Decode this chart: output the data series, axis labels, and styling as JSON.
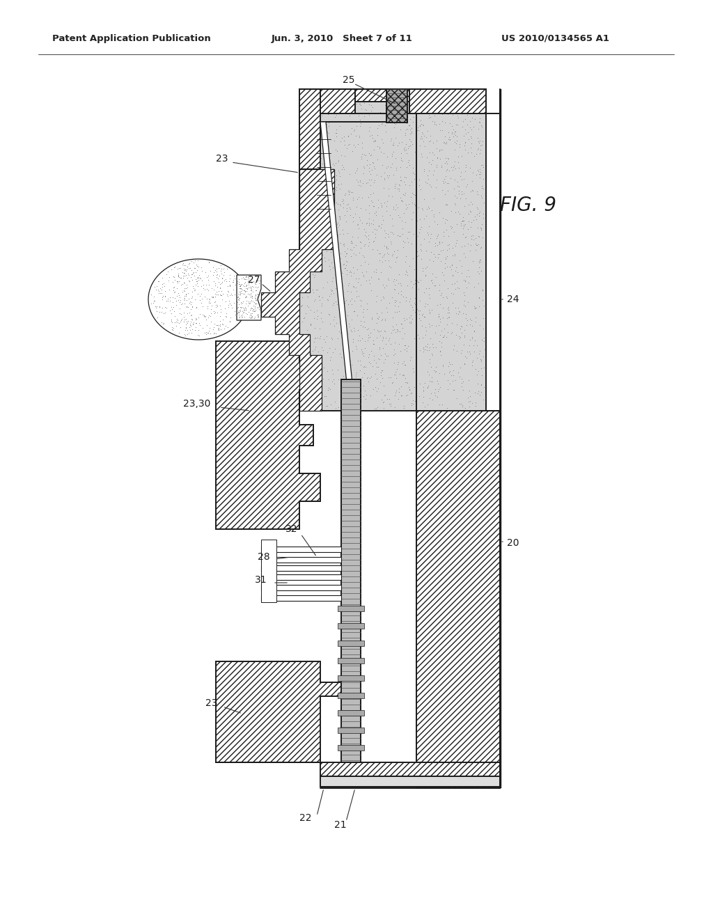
{
  "header_left": "Patent Application Publication",
  "header_mid": "Jun. 3, 2010   Sheet 7 of 11",
  "header_right": "US 2010/0134565 A1",
  "fig_label": "FIG. 9",
  "bg_color": "#ffffff",
  "lc": "#1a1a1a",
  "stipple_color": "#c8c8c8",
  "hatch_color": "#888888",
  "dark_fill": "#666666",
  "label_fs": 10,
  "header_fs": 9.5,
  "fig_fs": 20
}
